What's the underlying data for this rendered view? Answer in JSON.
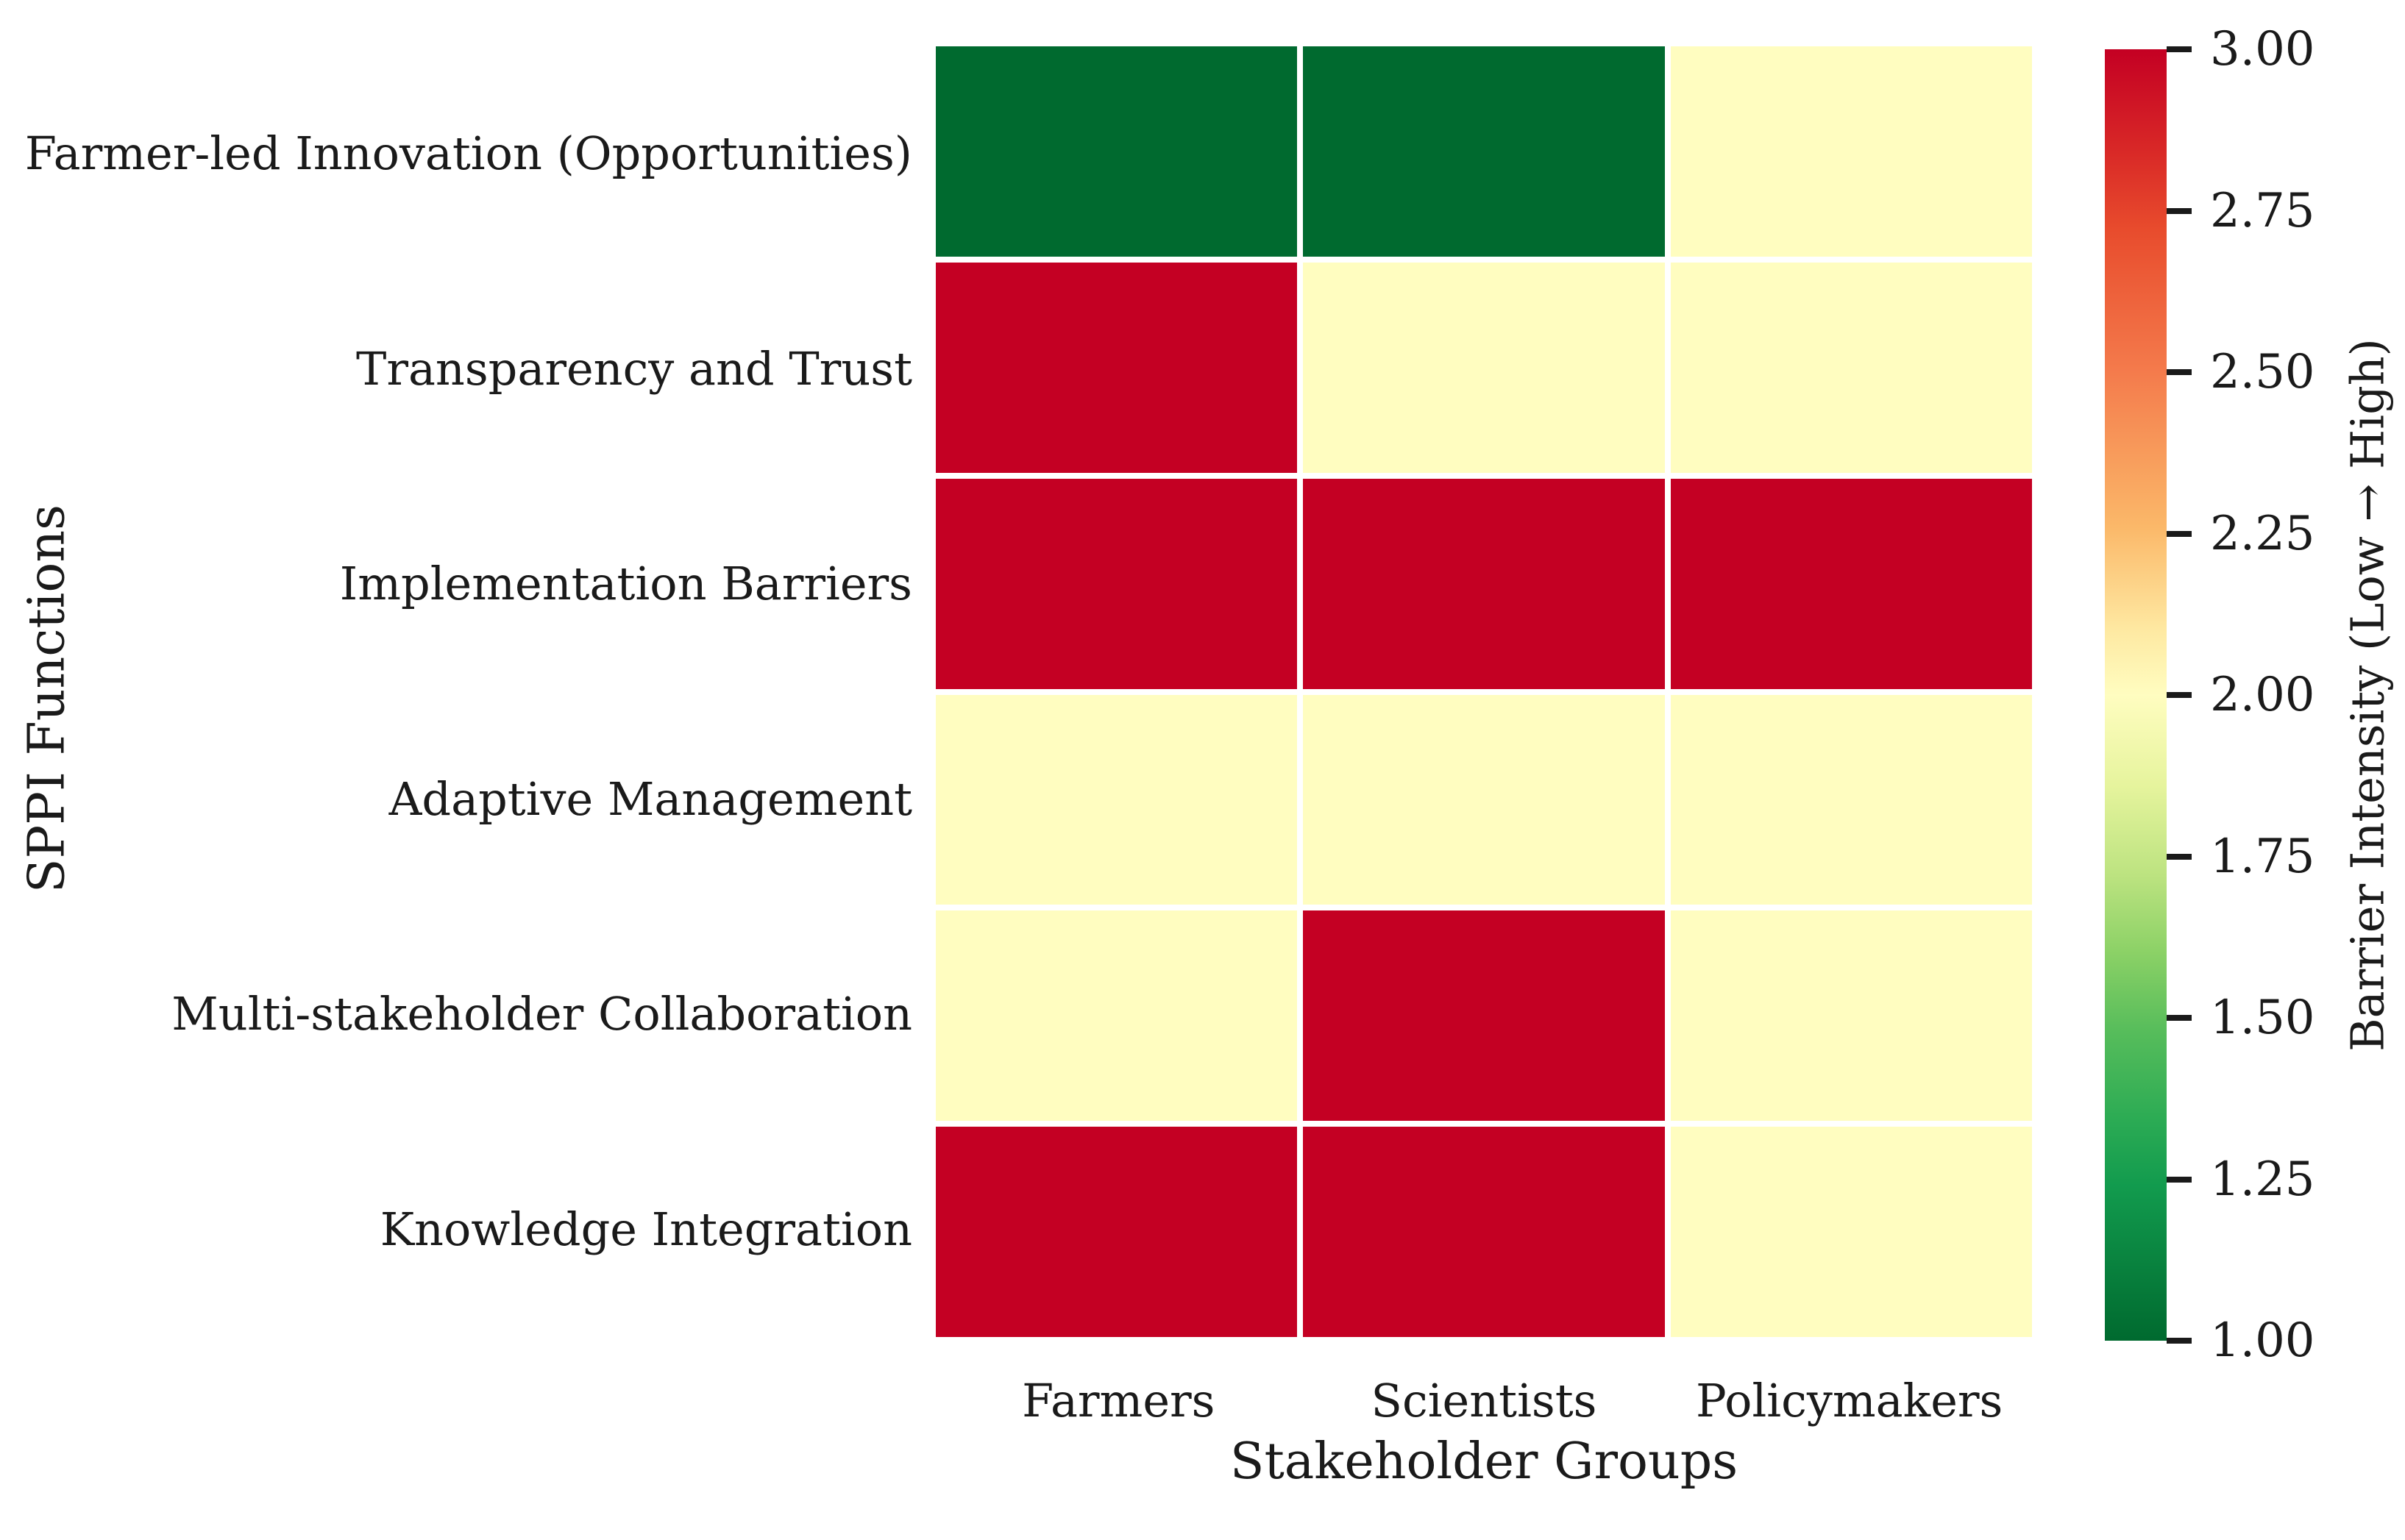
{
  "chart_data": {
    "type": "heatmap",
    "xlabel": "Stakeholder Groups",
    "ylabel": "SPPI Functions",
    "x_categories": [
      "Farmers",
      "Scientists",
      "Policymakers"
    ],
    "y_categories": [
      "Farmer-led Innovation (Opportunities)",
      "Transparency and Trust",
      "Implementation Barriers",
      "Adaptive Management",
      "Multi-stakeholder Collaboration",
      "Knowledge Integration"
    ],
    "values": [
      [
        1,
        1,
        2
      ],
      [
        3,
        2,
        2
      ],
      [
        3,
        3,
        3
      ],
      [
        2,
        2,
        2
      ],
      [
        2,
        3,
        2
      ],
      [
        3,
        3,
        2
      ]
    ],
    "value_colors": {
      "1": "#006A2F",
      "2": "#FFFDC0",
      "3": "#C40023"
    },
    "grid_line_color": "#ffffff",
    "colorbar": {
      "label": "Barrier Intensity (Low → High)",
      "vmin": 1.0,
      "vmax": 3.0,
      "ticks": [
        "3.00",
        "2.75",
        "2.50",
        "2.25",
        "2.00",
        "1.75",
        "1.50",
        "1.25",
        "1.00"
      ],
      "gradient_stops": [
        "#C40023 0%",
        "#D92927 8%",
        "#E84C2D 14%",
        "#F47B4C 25%",
        "#FBB869 37%",
        "#FEE9A2 45%",
        "#FFFDC0 50%",
        "#E6F49D 57%",
        "#BCE380 64%",
        "#8BD166 70%",
        "#57BD5B 76%",
        "#2BAB54 83%",
        "#129B4E 88%",
        "#006A2F 100%"
      ]
    },
    "legend_position": "right-colorbar",
    "grid": false
  }
}
